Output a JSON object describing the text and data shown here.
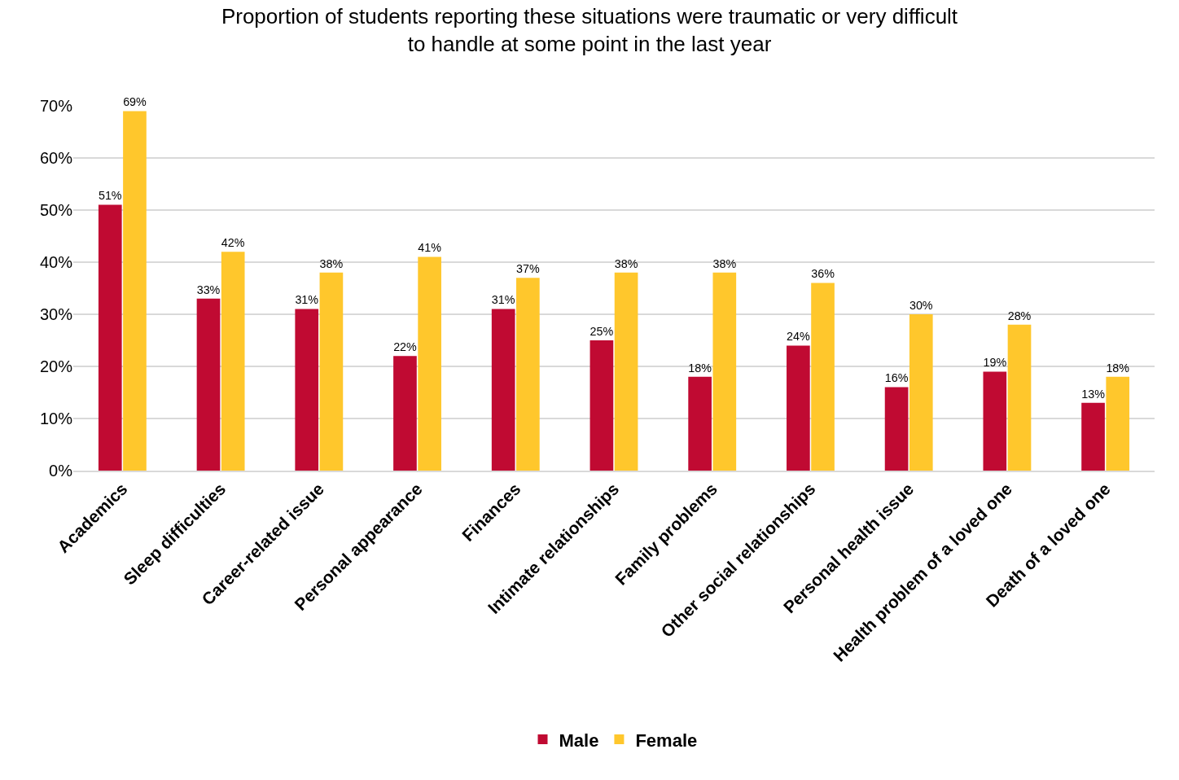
{
  "chart_data": {
    "type": "bar",
    "title": "Proportion of students reporting these situations were traumatic or very difficult\nto handle at some point in the last year",
    "categories": [
      "Academics",
      "Sleep difficulties",
      "Career-related issue",
      "Personal appearance",
      "Finances",
      "Intimate relationships",
      "Family problems",
      "Other social relationships",
      "Personal health issue",
      "Health problem of a loved one",
      "Death of a loved one"
    ],
    "series": [
      {
        "name": "Male",
        "color": "#c00a32",
        "values": [
          51,
          33,
          31,
          22,
          31,
          25,
          18,
          24,
          16,
          19,
          13
        ],
        "value_labels": [
          "51%",
          "33%",
          "31%",
          "22%",
          "31%",
          "25%",
          "18%",
          "24%",
          "16%",
          "19%",
          "13%"
        ]
      },
      {
        "name": "Female",
        "color": "#ffc72c",
        "values": [
          69,
          42,
          38,
          41,
          37,
          38,
          38,
          36,
          30,
          28,
          18
        ],
        "value_labels": [
          "69%",
          "42%",
          "38%",
          "41%",
          "37%",
          "38%",
          "38%",
          "36%",
          "30%",
          "28%",
          "18%"
        ]
      }
    ],
    "ylim": [
      0,
      70
    ],
    "yticks": [
      {
        "value": 0,
        "label": "0%"
      },
      {
        "value": 10,
        "label": "10%"
      },
      {
        "value": 20,
        "label": "20%"
      },
      {
        "value": 30,
        "label": "30%"
      },
      {
        "value": 40,
        "label": "40%"
      },
      {
        "value": 50,
        "label": "50%"
      },
      {
        "value": 60,
        "label": "60%"
      },
      {
        "value": 70,
        "label": "70%"
      }
    ],
    "grid": "y",
    "legend": "bottom"
  }
}
